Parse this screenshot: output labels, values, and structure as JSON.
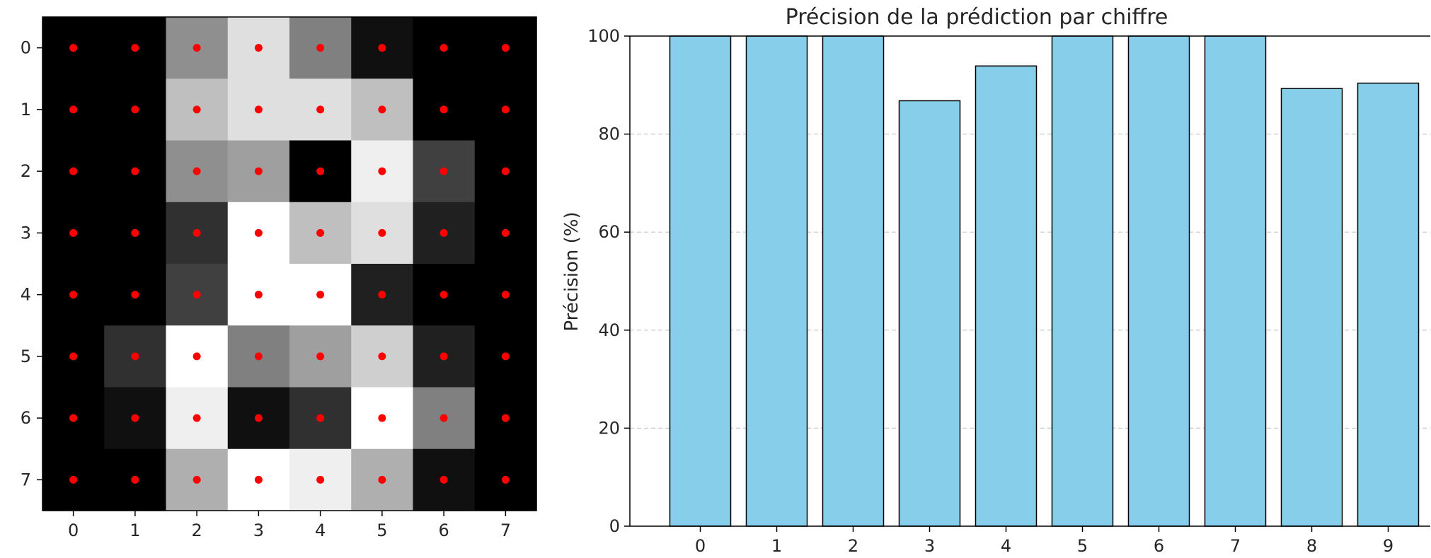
{
  "chart_data": [
    {
      "type": "heatmap",
      "xlabel": "",
      "ylabel": "",
      "x_ticks": [
        "0",
        "1",
        "2",
        "3",
        "4",
        "5",
        "6",
        "7"
      ],
      "y_ticks": [
        "0",
        "1",
        "2",
        "3",
        "4",
        "5",
        "6",
        "7"
      ],
      "colormap": "gray",
      "value_range": [
        0,
        16
      ],
      "values": [
        [
          0,
          0,
          9,
          14,
          8,
          1,
          0,
          0
        ],
        [
          0,
          0,
          12,
          14,
          14,
          12,
          0,
          0
        ],
        [
          0,
          0,
          9,
          10,
          0,
          15,
          4,
          0
        ],
        [
          0,
          0,
          3,
          16,
          12,
          14,
          2,
          0
        ],
        [
          0,
          0,
          4,
          16,
          16,
          2,
          0,
          0
        ],
        [
          0,
          3,
          16,
          8,
          10,
          13,
          2,
          0
        ],
        [
          0,
          1,
          15,
          1,
          3,
          16,
          8,
          0
        ],
        [
          0,
          0,
          11,
          16,
          15,
          11,
          1,
          0
        ]
      ],
      "markers": {
        "color": "#ff0000",
        "on_every_cell": true
      }
    },
    {
      "type": "bar",
      "title": "Précision de la prédiction par chiffre",
      "xlabel": "",
      "ylabel": "Précision (%)",
      "categories": [
        "0",
        "1",
        "2",
        "3",
        "4",
        "5",
        "6",
        "7",
        "8",
        "9"
      ],
      "values": [
        100,
        100,
        100,
        86.8,
        93.9,
        100,
        100,
        100,
        89.3,
        90.4
      ],
      "ylim": [
        0,
        100
      ],
      "yticks": [
        "0",
        "20",
        "40",
        "60",
        "80",
        "100"
      ],
      "grid": "y-dashed",
      "bar_color": "#87ceeb",
      "edge_color": "#000000"
    }
  ]
}
